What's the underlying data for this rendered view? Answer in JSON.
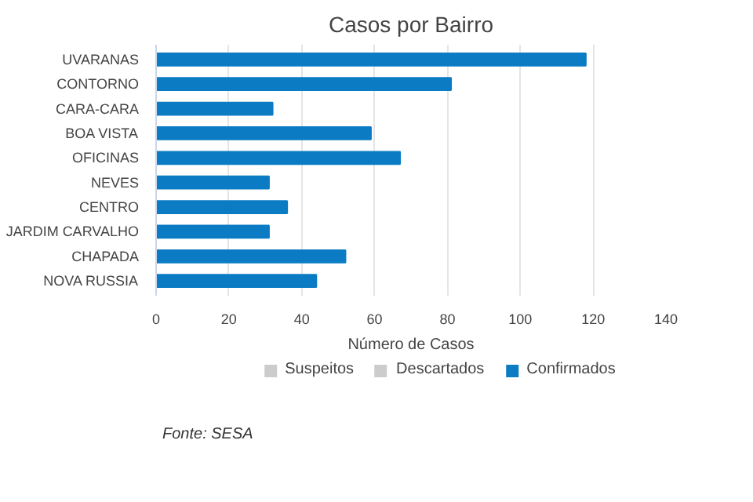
{
  "chart_data": {
    "type": "bar",
    "orientation": "horizontal",
    "title": "Casos por Bairro",
    "xlabel": "Número de Casos",
    "categories": [
      "UVARANAS",
      "CONTORNO",
      "CARA-CARA",
      "BOA VISTA",
      "OFICINAS",
      "NEVES",
      "CENTRO",
      "JARDIM CARVALHO",
      "CHAPADA",
      "NOVA RUSSIA"
    ],
    "series": [
      {
        "name": "Suspeitos",
        "color": "#cccccc",
        "values": [
          null,
          null,
          null,
          null,
          null,
          null,
          null,
          null,
          null,
          null
        ]
      },
      {
        "name": "Descartados",
        "color": "#cccccc",
        "values": [
          null,
          null,
          null,
          null,
          null,
          null,
          null,
          null,
          null,
          null
        ]
      },
      {
        "name": "Confirmados",
        "color": "#0b7cc4",
        "values": [
          118,
          81,
          32,
          59,
          67,
          31,
          36,
          31,
          52,
          44
        ]
      }
    ],
    "xlim": [
      0,
      140
    ],
    "xticks": [
      0,
      20,
      40,
      60,
      80,
      100,
      120,
      140
    ],
    "grid": "x",
    "legend": "bottom",
    "annotations": [
      "Fonte: SESA"
    ]
  }
}
